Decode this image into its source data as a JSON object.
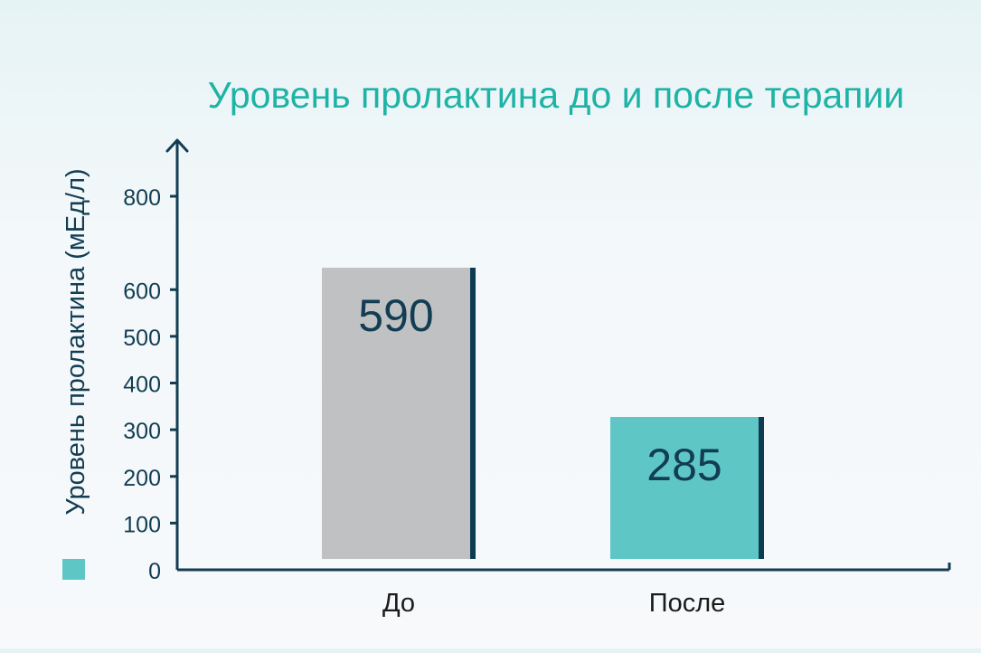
{
  "chart_data": {
    "type": "bar",
    "title": "Уровень пролактина  до и после терапии",
    "ylabel": "Уровень пролактина (мЕд/л)",
    "xlabel": "",
    "categories": [
      "До",
      "После"
    ],
    "values": [
      590,
      285
    ],
    "value_labels": [
      "590",
      "285"
    ],
    "y_ticks": [
      0,
      100,
      200,
      300,
      400,
      500,
      600,
      800
    ],
    "y_tick_labels": [
      "0",
      "100",
      "200",
      "300",
      "400",
      "500",
      "600",
      "800"
    ],
    "ylim": [
      0,
      900
    ],
    "grid": false,
    "legend": "bottom-left",
    "colors": {
      "title": "#1fb3a6",
      "axis": "#123d52",
      "text": "#123d52",
      "bar_before": "#c0c1c3",
      "bar_after": "#5ec7c6",
      "bar_edge": "#0f3b52",
      "legend_swatch": "#5ec7c6"
    }
  }
}
